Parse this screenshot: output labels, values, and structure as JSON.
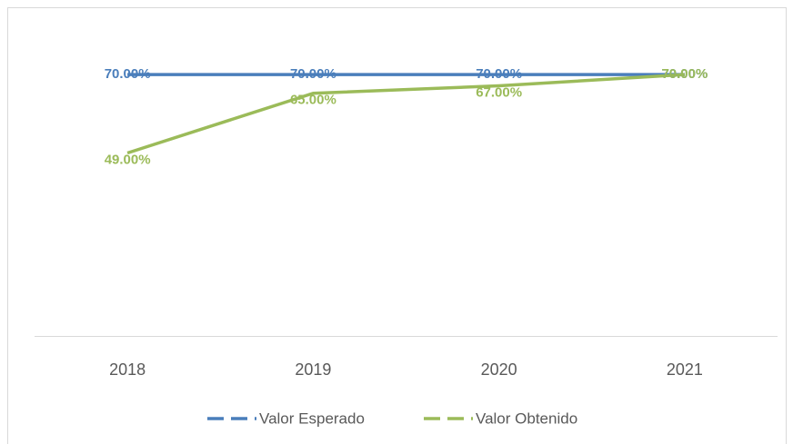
{
  "chart_data": {
    "type": "line",
    "categories": [
      "2018",
      "2019",
      "2020",
      "2021"
    ],
    "series": [
      {
        "name": "Valor Esperado",
        "color": "#4a7ebb",
        "values": [
          70,
          70,
          70,
          70
        ],
        "value_labels": [
          "70.00%",
          "70.00%",
          "70.00%",
          "70.00%"
        ]
      },
      {
        "name": "Valor Obtenido",
        "color": "#9bbb59",
        "values": [
          49,
          65,
          67,
          70
        ],
        "value_labels": [
          "49.00%",
          "65.00%",
          "67.00%",
          "70.00%"
        ]
      }
    ],
    "ylim": [
      0,
      80
    ]
  }
}
